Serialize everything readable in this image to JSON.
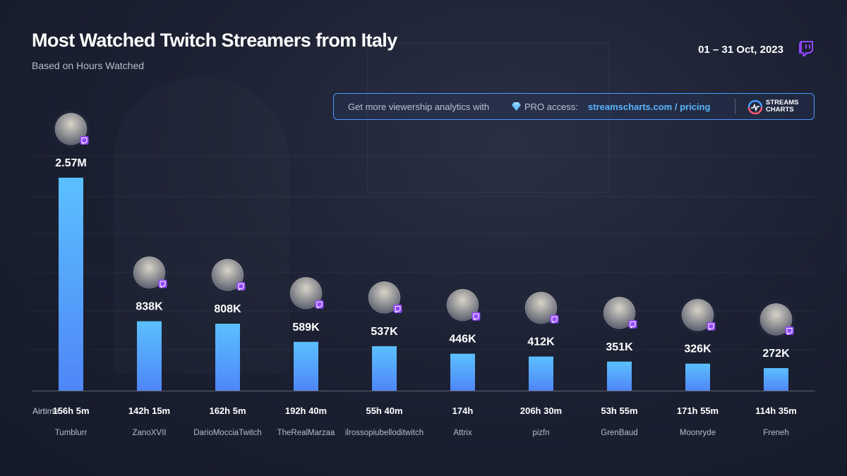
{
  "header": {
    "title": "Most Watched Twitch Streamers from Italy",
    "subtitle": "Based on Hours Watched",
    "date_range": "01 – 31 Oct, 2023"
  },
  "promo": {
    "text": "Get more viewership analytics with",
    "pro": "PRO access:",
    "link": "streamscharts.com / pricing",
    "brand_line1": "STREAMS",
    "brand_line2": "CHARTS"
  },
  "colors": {
    "bar_top": "#5bc0ff",
    "bar_bottom": "#4f86f7",
    "twitch_purple": "#9146ff",
    "accent_link": "#5ab4ff"
  },
  "chart_data": {
    "type": "bar",
    "title": "Most Watched Twitch Streamers from Italy",
    "subtitle": "Based on Hours Watched",
    "categories": [
      "Tumblurr",
      "ZanoXVII",
      "DarioMocciaTwitch",
      "TheRealMarzaa",
      "ilrossopiubelloditwitch",
      "Attrix",
      "pizfn",
      "GrenBaud",
      "Moonryde",
      "Freneh"
    ],
    "values": [
      2570000,
      838000,
      808000,
      589000,
      537000,
      446000,
      412000,
      351000,
      326000,
      272000
    ],
    "value_labels": [
      "2.57M",
      "838K",
      "808K",
      "589K",
      "537K",
      "446K",
      "412K",
      "351K",
      "326K",
      "272K"
    ],
    "airtime_label": "Airtime:",
    "airtime": [
      "156h 5m",
      "142h 15m",
      "162h 5m",
      "192h 40m",
      "55h 40m",
      "174h",
      "206h 30m",
      "53h 55m",
      "171h 55m",
      "114h 35m"
    ],
    "ylim": [
      0,
      2570000
    ],
    "grid": true,
    "legend": "none"
  }
}
